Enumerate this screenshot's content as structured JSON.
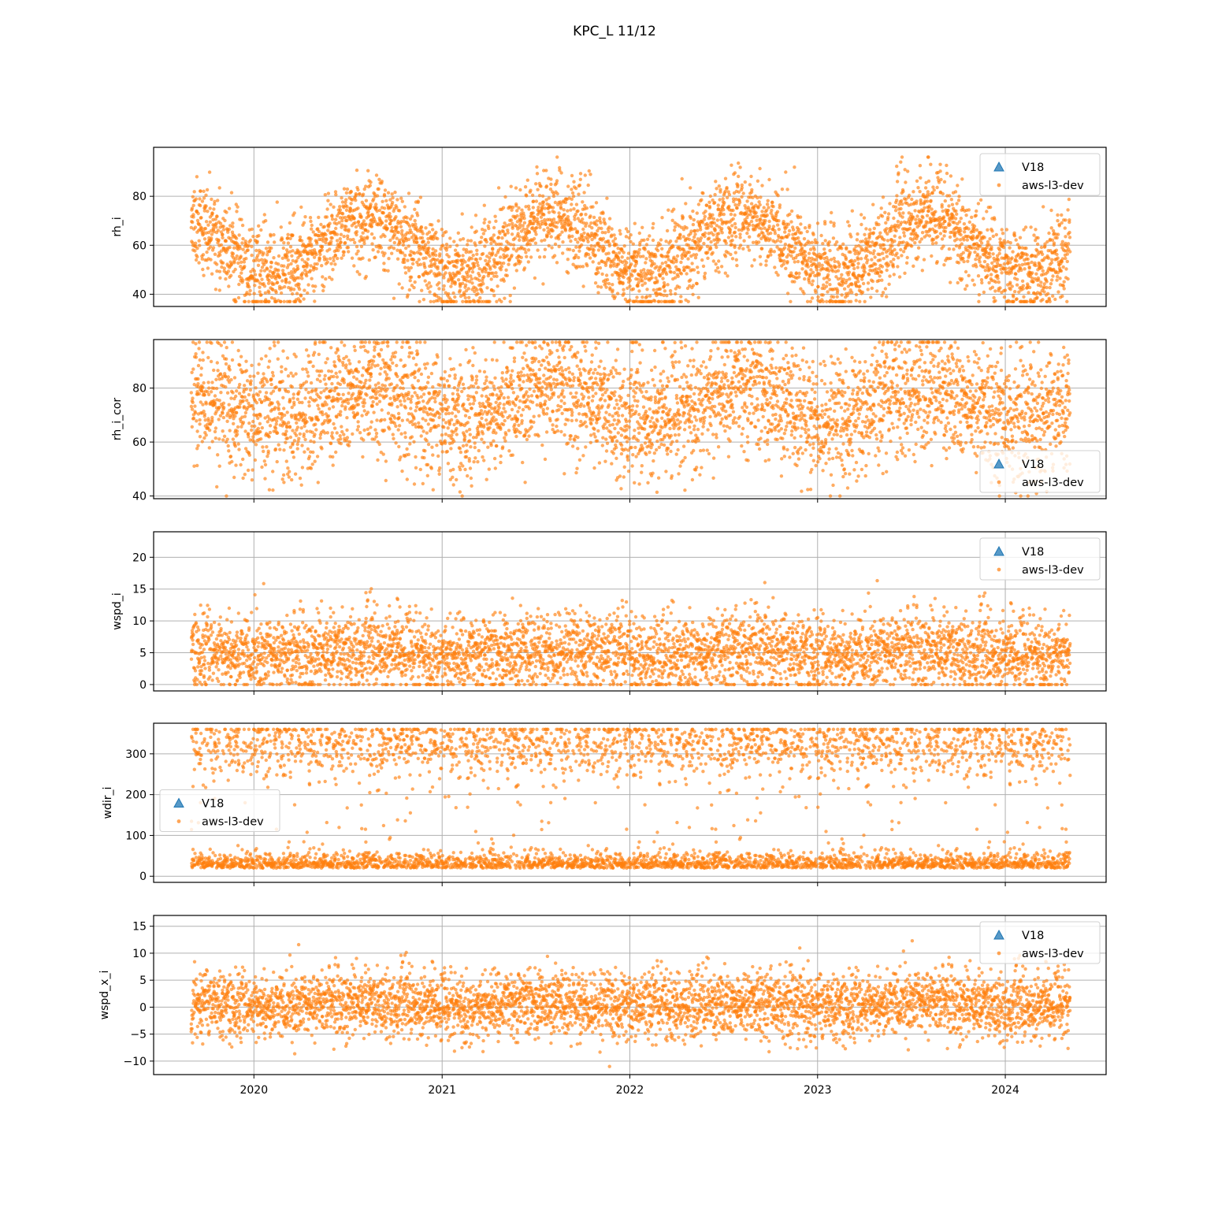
{
  "title": "KPC_L 11/12",
  "colors": {
    "v18": "#1f77b4",
    "aws": "#ff7f0e",
    "grid": "#b0b0b0"
  },
  "chart_data": [
    {
      "type": "scatter",
      "ylabel": "rh_i",
      "ylim": [
        35,
        100
      ],
      "yticks": [
        40,
        60,
        80
      ],
      "ytick_labels": [
        "40",
        "60",
        "80"
      ],
      "xlim": [
        "2019-06-20",
        "2024-07-15"
      ],
      "legend": "upper right",
      "series": [
        {
          "name": "V18",
          "marker": "triangle",
          "values": []
        },
        {
          "name": "aws-l3-dev",
          "marker": "dot",
          "model": {
            "start": "2019-09-01",
            "end": "2024-05-05",
            "daily_points": 2.6,
            "base": 60,
            "season_amp": 12,
            "peak_month": 7.2,
            "spread": 9,
            "min": 37,
            "max": 96
          }
        }
      ]
    },
    {
      "type": "scatter",
      "ylabel": "rh_i_cor",
      "ylim": [
        39,
        98
      ],
      "yticks": [
        40,
        60,
        80
      ],
      "ytick_labels": [
        "40",
        "60",
        "80"
      ],
      "xlim": [
        "2019-06-20",
        "2024-07-15"
      ],
      "legend": "lower right",
      "series": [
        {
          "name": "V18",
          "marker": "triangle",
          "values": []
        },
        {
          "name": "aws-l3-dev",
          "marker": "dot",
          "model": {
            "start": "2019-09-01",
            "end": "2024-05-05",
            "daily_points": 2.6,
            "base": 74,
            "season_amp": 6,
            "peak_month": 7.2,
            "spread": 11,
            "min": 40,
            "max": 97
          }
        }
      ]
    },
    {
      "type": "scatter",
      "ylabel": "wspd_i",
      "ylim": [
        -1,
        24
      ],
      "yticks": [
        0,
        5,
        10,
        15,
        20
      ],
      "ytick_labels": [
        "0",
        "5",
        "10",
        "15",
        "20"
      ],
      "xlim": [
        "2019-06-20",
        "2024-07-15"
      ],
      "legend": "upper right",
      "series": [
        {
          "name": "V18",
          "marker": "triangle",
          "values": []
        },
        {
          "name": "aws-l3-dev",
          "marker": "dot",
          "model": {
            "start": "2019-09-01",
            "end": "2024-05-05",
            "daily_points": 2.6,
            "base": 5,
            "season_amp": 0.5,
            "peak_month": 7.0,
            "spread": 3,
            "min": 0,
            "max": 22.7
          }
        }
      ]
    },
    {
      "type": "scatter",
      "ylabel": "wdir_i",
      "ylim": [
        -15,
        375
      ],
      "yticks": [
        0,
        100,
        200,
        300
      ],
      "ytick_labels": [
        "0",
        "100",
        "200",
        "300"
      ],
      "xlim": [
        "2019-06-20",
        "2024-07-15"
      ],
      "legend": "center left",
      "series": [
        {
          "name": "V18",
          "marker": "triangle",
          "values": []
        },
        {
          "name": "aws-l3-dev",
          "marker": "dot",
          "model": {
            "start": "2019-09-01",
            "end": "2024-05-05",
            "daily_points": 2.6,
            "clusters": [
              [
                20,
                18,
                0.55
              ],
              [
                320,
                35,
                0.45
              ]
            ],
            "min": 0,
            "max": 360
          }
        }
      ]
    },
    {
      "type": "scatter",
      "ylabel": "wspd_x_i",
      "ylim": [
        -12.5,
        17
      ],
      "yticks": [
        -10,
        -5,
        0,
        5,
        10,
        15
      ],
      "ytick_labels": [
        "−10",
        "−5",
        "0",
        "5",
        "10",
        "15"
      ],
      "xlim": [
        "2019-06-20",
        "2024-07-15"
      ],
      "legend": "upper right",
      "series": [
        {
          "name": "V18",
          "marker": "triangle",
          "values": []
        },
        {
          "name": "aws-l3-dev",
          "marker": "dot",
          "model": {
            "start": "2019-09-01",
            "end": "2024-05-05",
            "daily_points": 2.6,
            "base": 0.5,
            "season_amp": 0.5,
            "peak_month": 7.0,
            "spread": 3,
            "min": -11,
            "max": 15.5
          }
        }
      ]
    }
  ],
  "xticks": [
    "2020-01-01",
    "2021-01-01",
    "2022-01-01",
    "2023-01-01",
    "2024-01-01"
  ],
  "xtick_labels": [
    "2020",
    "2021",
    "2022",
    "2023",
    "2024"
  ]
}
